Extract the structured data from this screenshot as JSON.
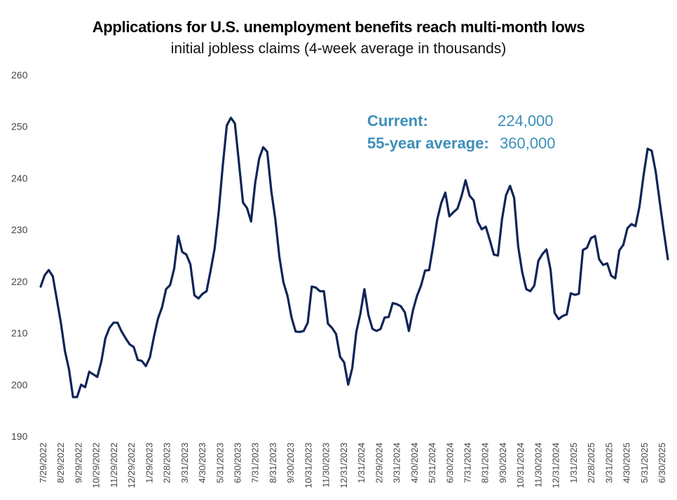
{
  "chart_data": {
    "type": "line",
    "title": "Applications for U.S. unemployment benefits reach multi-month lows",
    "subtitle": "initial jobless claims (4-week average in thousands)",
    "xlabel": "",
    "ylabel": "",
    "ylim": [
      190,
      260
    ],
    "yticks": [
      190,
      200,
      210,
      220,
      230,
      240,
      250,
      260
    ],
    "grid": false,
    "x_tick_labels": [
      "7/29/2022",
      "8/29/2022",
      "9/29/2022",
      "10/29/2022",
      "11/29/2022",
      "12/29/2022",
      "1/29/2023",
      "2/28/2023",
      "3/31/2023",
      "4/30/2023",
      "5/31/2023",
      "6/30/2023",
      "7/31/2023",
      "8/31/2023",
      "9/30/2023",
      "10/31/2023",
      "11/30/2023",
      "12/31/2023",
      "1/31/2024",
      "2/29/2024",
      "3/31/2024",
      "4/30/2024",
      "5/31/2024",
      "6/30/2024",
      "7/31/2024",
      "8/31/2024",
      "9/30/2024",
      "10/31/2024",
      "11/30/2024",
      "12/31/2024",
      "1/31/2025",
      "2/28/2025",
      "3/31/2025",
      "4/30/2025",
      "5/31/2025",
      "6/30/2025"
    ],
    "series": [
      {
        "color": "#0f2557",
        "values": [
          219,
          221.2,
          222.2,
          221,
          216.5,
          212,
          206.5,
          203,
          197.6,
          197.6,
          200,
          199.5,
          202.5,
          202,
          201.5,
          204.5,
          209,
          211,
          212,
          212,
          210.3,
          209,
          207.8,
          207.3,
          204.8,
          204.6,
          203.6,
          205.3,
          209.3,
          212.8,
          215,
          218.5,
          219.3,
          222.5,
          228.8,
          225.7,
          225.2,
          223.3,
          217.3,
          216.7,
          217.6,
          218.1,
          222.1,
          226.4,
          233.5,
          242.4,
          250.2,
          251.7,
          250.6,
          243,
          235.3,
          234.2,
          231.6,
          239,
          243.8,
          246,
          245.1,
          237.5,
          232,
          224.7,
          219.8,
          217.2,
          213,
          210.3,
          210.2,
          210.4,
          212,
          219,
          218.8,
          218.1,
          218.1,
          211.8,
          211,
          209.8,
          205.4,
          204.3,
          200,
          203.2,
          210.2,
          213.7,
          218.5,
          213.5,
          210.8,
          210.4,
          210.8,
          213,
          213.1,
          215.8,
          215.6,
          215.2,
          214,
          210.4,
          214.4,
          217.2,
          219.2,
          222.1,
          222.2,
          226.9,
          232,
          235.2,
          237.2,
          232.6,
          233.4,
          234.1,
          236.5,
          239.6,
          236.6,
          235.7,
          231.6,
          230.1,
          230.6,
          228,
          225.2,
          225,
          232,
          236.7,
          238.5,
          236.2,
          226.8,
          221.8,
          218.5,
          218.1,
          219.2,
          224,
          225.3,
          226.2,
          222.3,
          213.9,
          212.7,
          213.3,
          213.6,
          217.7,
          217.4,
          217.6,
          226.1,
          226.5,
          228.4,
          228.8,
          224.3,
          223.2,
          223.5,
          221.1,
          220.6,
          226,
          227.1,
          230.3,
          231.1,
          230.7,
          234.6,
          240.6,
          245.7,
          245.3,
          241.2,
          235.3,
          229.6,
          224.3
        ]
      }
    ],
    "annotations": [
      {
        "label": "Current:",
        "value": "224,000"
      },
      {
        "label": "55-year average:",
        "value": "360,000"
      }
    ]
  }
}
